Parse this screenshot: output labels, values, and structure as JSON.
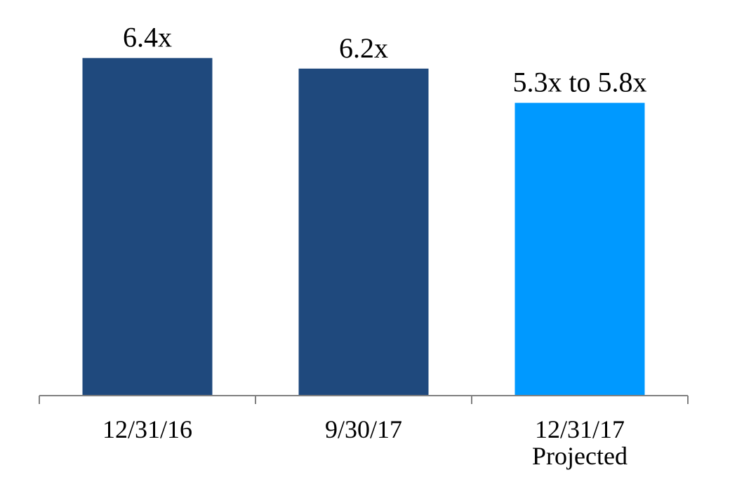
{
  "chart_data": {
    "type": "bar",
    "categories": [
      [
        "12/31/16"
      ],
      [
        "9/30/17"
      ],
      [
        "12/31/17",
        "Projected"
      ]
    ],
    "values": [
      6.4,
      6.2,
      5.55
    ],
    "data_labels": [
      "6.4x",
      "6.2x",
      "5.3x to 5.8x"
    ],
    "bar_colors": [
      "#1f497d",
      "#1f497d",
      "#0099ff"
    ],
    "axis_color": "#808080",
    "ylim": [
      0,
      7.5
    ],
    "grid": false,
    "legend": "none"
  }
}
